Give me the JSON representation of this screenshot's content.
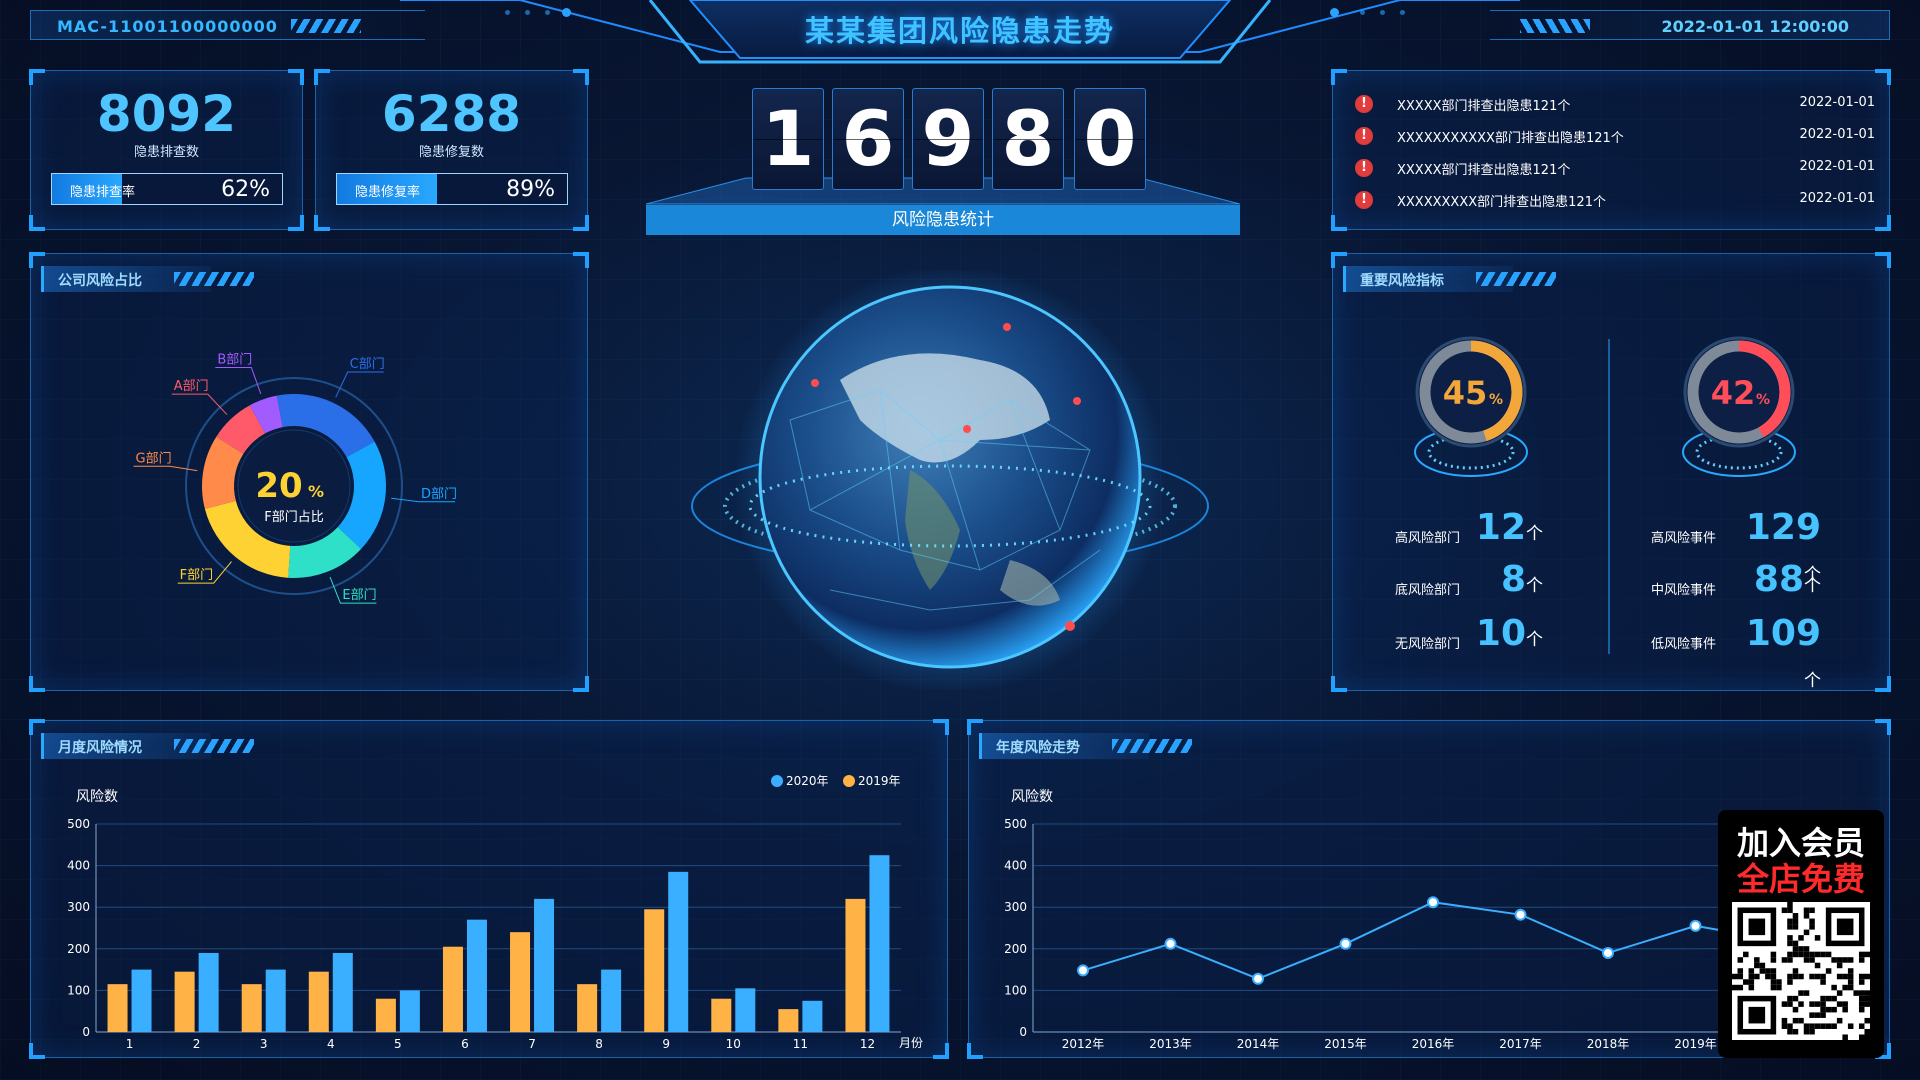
{
  "header": {
    "title": "某某集团风险隐患走势",
    "device_id": "MAC-11001100000000",
    "datetime": "2022-01-01 12:00:00"
  },
  "stats": [
    {
      "value": "8092",
      "label": "隐患排查数",
      "rate_label": "隐患排查率",
      "rate_value": "62%",
      "rate": 0.62
    },
    {
      "value": "6288",
      "label": "隐患修复数",
      "rate_label": "隐患修复率",
      "rate_value": "89%",
      "rate": 0.89
    }
  ],
  "counter": {
    "digits": [
      "1",
      "6",
      "9",
      "8",
      "0"
    ],
    "label": "风险隐患统计"
  },
  "news": [
    {
      "text": "XXXXX部门排查出隐患121个",
      "date": "2022-01-01"
    },
    {
      "text": "XXXXXXXXXXX部门排查出隐患121个",
      "date": "2022-01-01"
    },
    {
      "text": "XXXXX部门排查出隐患121个",
      "date": "2022-01-01"
    },
    {
      "text": "XXXXXXXXX部门排查出隐患121个",
      "date": "2022-01-01"
    }
  ],
  "company_panel": {
    "title": "公司风险占比",
    "center_value": "20",
    "center_unit": "%",
    "center_label": "F部门占比"
  },
  "indicators_panel": {
    "title": "重要风险指标",
    "gauges": [
      {
        "value": "45",
        "unit": "%",
        "percent": 45,
        "color": "#f3a73b"
      },
      {
        "value": "42",
        "unit": "%",
        "percent": 42,
        "color": "#ff4e5a"
      }
    ],
    "left_list": [
      {
        "label": "高风险部门",
        "value": "12",
        "unit": "个"
      },
      {
        "label": "底风险部门",
        "value": "8",
        "unit": "个"
      },
      {
        "label": "无风险部门",
        "value": "10",
        "unit": "个"
      }
    ],
    "right_list": [
      {
        "label": "高风险事件",
        "value": "129",
        "unit": "个"
      },
      {
        "label": "中风险事件",
        "value": "88",
        "unit": "个"
      },
      {
        "label": "低风险事件",
        "value": "109",
        "unit": "个"
      }
    ]
  },
  "monthly_panel": {
    "title": "月度风险情况"
  },
  "yearly_panel": {
    "title": "年度风险走势"
  },
  "member": {
    "line1": "加入会员",
    "line2": "全店免费"
  },
  "chart_data": [
    {
      "type": "pie",
      "title": "公司风险占比",
      "labels": [
        "A部门",
        "B部门",
        "C部门",
        "D部门",
        "E部门",
        "F部门",
        "G部门"
      ],
      "values": [
        8,
        5,
        20,
        20,
        14,
        20,
        13
      ],
      "colors": [
        "#ff5a6a",
        "#a25bff",
        "#2b6fe8",
        "#17a6ff",
        "#2ee0c8",
        "#ffd233",
        "#ff8a4a"
      ]
    },
    {
      "type": "bar",
      "ylabel": "风险数",
      "xlabel": "月份",
      "categories": [
        "1",
        "2",
        "3",
        "4",
        "5",
        "6",
        "7",
        "8",
        "9",
        "10",
        "11",
        "12"
      ],
      "ylim": [
        0,
        500
      ],
      "yticks": [
        0,
        100,
        200,
        300,
        400,
        500
      ],
      "legend": "top-right",
      "grid": true,
      "series": [
        {
          "name": "2020年",
          "color": "#3aaeff",
          "values": [
            150,
            190,
            150,
            190,
            100,
            270,
            320,
            150,
            385,
            105,
            75,
            425
          ]
        },
        {
          "name": "2019年",
          "color": "#ffb347",
          "values": [
            115,
            145,
            115,
            145,
            80,
            205,
            240,
            115,
            295,
            80,
            55,
            320
          ]
        }
      ]
    },
    {
      "type": "line",
      "ylabel": "风险数",
      "categories": [
        "2012年",
        "2013年",
        "2014年",
        "2015年",
        "2016年",
        "2017年",
        "2018年",
        "2019年"
      ],
      "ylim": [
        0,
        500
      ],
      "yticks": [
        0,
        100,
        200,
        300,
        400,
        500
      ],
      "grid": true,
      "series": [
        {
          "color": "#3aaeff",
          "values": [
            148,
            212,
            128,
            212,
            312,
            282,
            190,
            255
          ]
        }
      ]
    }
  ]
}
